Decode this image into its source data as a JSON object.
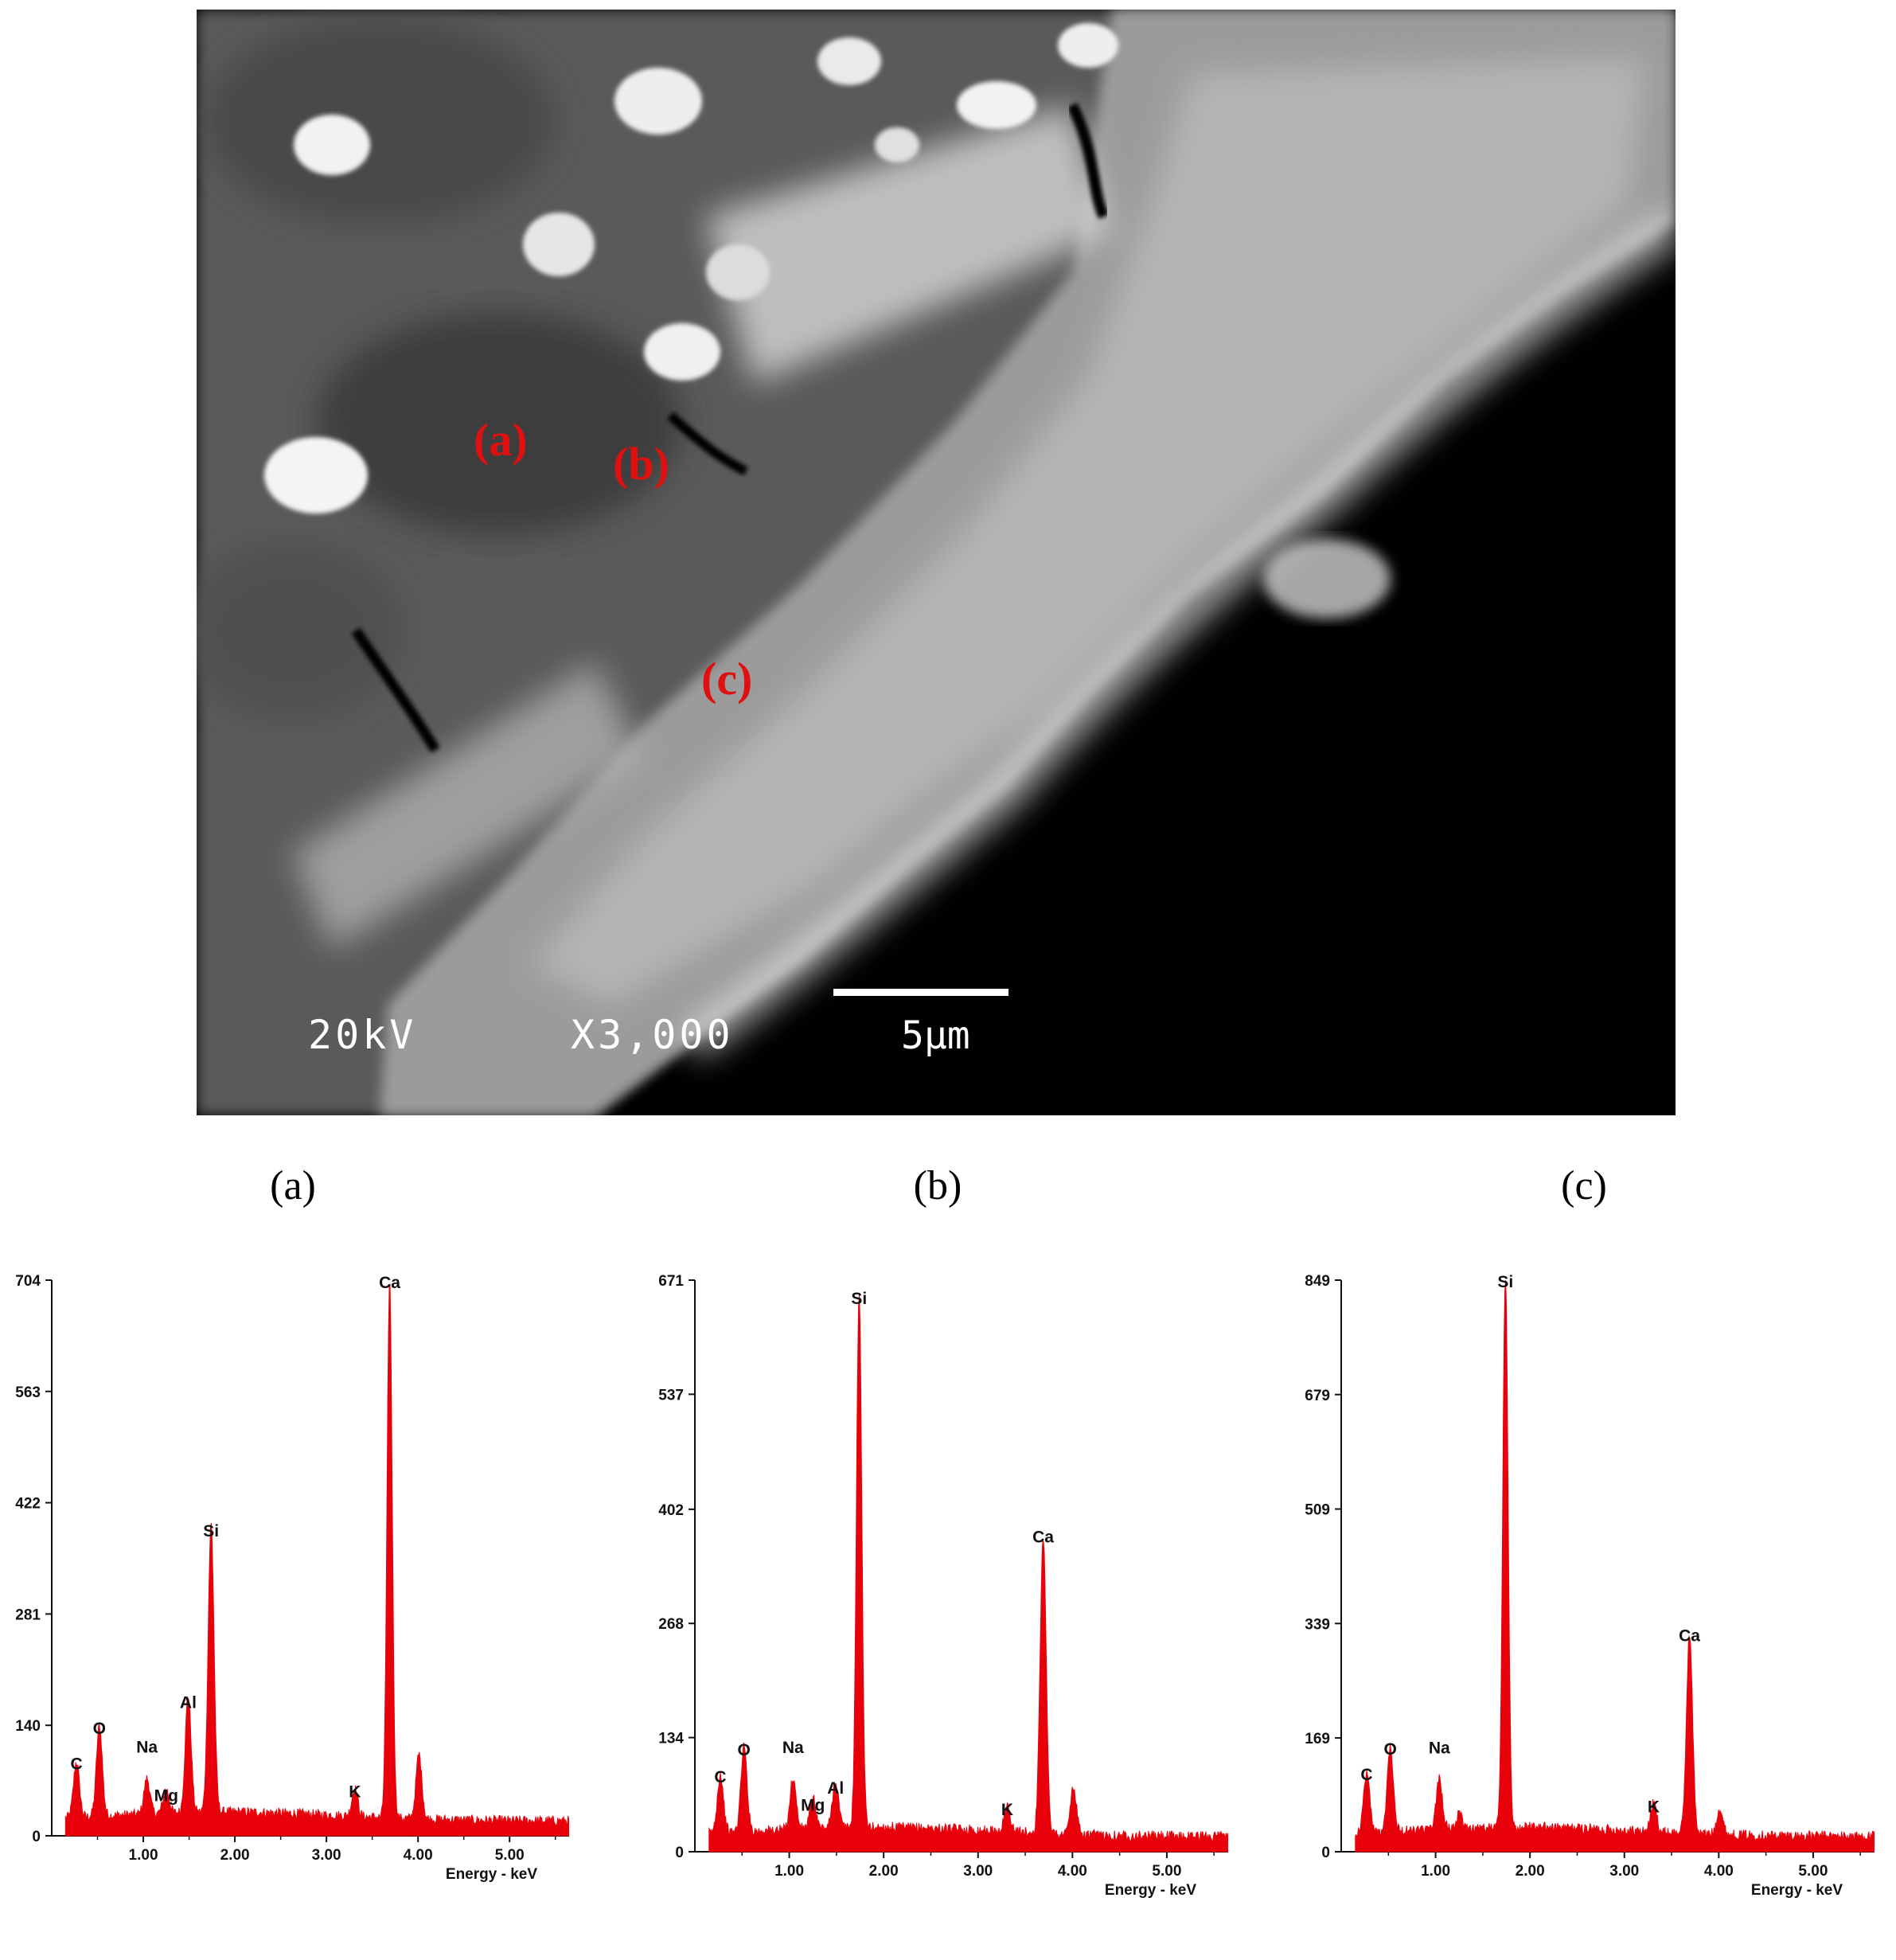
{
  "micrograph": {
    "region_labels": [
      "(a)",
      "(b)",
      "(c)"
    ],
    "voltage": "20kV",
    "magnification": "X3,000",
    "scale_bar": "5μm"
  },
  "panel_letters": [
    "(a)",
    "(b)",
    "(c)"
  ],
  "colors": {
    "spectrum": "#e8000a",
    "label_red": "#e01010",
    "axis": "#111111"
  },
  "chart_data": [
    {
      "type": "area",
      "panel": "(a)",
      "xlabel": "Energy - keV",
      "xticks": [
        "1.00",
        "2.00",
        "3.00",
        "4.00",
        "5.00"
      ],
      "xlim": [
        0.0,
        5.65
      ],
      "yticks": [
        0,
        140,
        281,
        422,
        563,
        704
      ],
      "ylim": [
        0,
        704
      ],
      "peaks": [
        {
          "element": "C",
          "x": 0.27,
          "y": 70
        },
        {
          "element": "O",
          "x": 0.52,
          "y": 115
        },
        {
          "element": "Na",
          "x": 1.04,
          "y": 45
        },
        {
          "element": "Mg",
          "x": 1.25,
          "y": 30
        },
        {
          "element": "Al",
          "x": 1.49,
          "y": 148
        },
        {
          "element": "Si",
          "x": 1.74,
          "y": 365
        },
        {
          "element": "K",
          "x": 3.31,
          "y": 35
        },
        {
          "element": "Ca",
          "x": 3.69,
          "y": 680
        },
        {
          "element": "",
          "x": 4.01,
          "y": 82
        }
      ]
    },
    {
      "type": "area",
      "panel": "(b)",
      "xlabel": "Energy - keV",
      "xticks": [
        "1.00",
        "2.00",
        "3.00",
        "4.00",
        "5.00"
      ],
      "xlim": [
        0.0,
        5.65
      ],
      "yticks": [
        0,
        134,
        268,
        402,
        537,
        671
      ],
      "ylim": [
        0,
        671
      ],
      "peaks": [
        {
          "element": "C",
          "x": 0.27,
          "y": 68
        },
        {
          "element": "O",
          "x": 0.52,
          "y": 100
        },
        {
          "element": "Na",
          "x": 1.04,
          "y": 60
        },
        {
          "element": "Mg",
          "x": 1.25,
          "y": 35
        },
        {
          "element": "Al",
          "x": 1.49,
          "y": 55
        },
        {
          "element": "Si",
          "x": 1.74,
          "y": 630
        },
        {
          "element": "K",
          "x": 3.31,
          "y": 30
        },
        {
          "element": "Ca",
          "x": 3.69,
          "y": 350
        },
        {
          "element": "",
          "x": 4.01,
          "y": 55
        }
      ]
    },
    {
      "type": "area",
      "panel": "(c)",
      "xlabel": "Energy - keV",
      "xticks": [
        "1.00",
        "2.00",
        "3.00",
        "4.00",
        "5.00"
      ],
      "xlim": [
        0.0,
        5.65
      ],
      "yticks": [
        0,
        169,
        339,
        509,
        679,
        849
      ],
      "ylim": [
        0,
        849
      ],
      "peaks": [
        {
          "element": "C",
          "x": 0.27,
          "y": 90
        },
        {
          "element": "O",
          "x": 0.52,
          "y": 128
        },
        {
          "element": "Na",
          "x": 1.04,
          "y": 75
        },
        {
          "element": "",
          "x": 1.25,
          "y": 20
        },
        {
          "element": "Si",
          "x": 1.74,
          "y": 822
        },
        {
          "element": "K",
          "x": 3.31,
          "y": 42
        },
        {
          "element": "Ca",
          "x": 3.69,
          "y": 296
        },
        {
          "element": "",
          "x": 4.01,
          "y": 38
        }
      ]
    }
  ]
}
